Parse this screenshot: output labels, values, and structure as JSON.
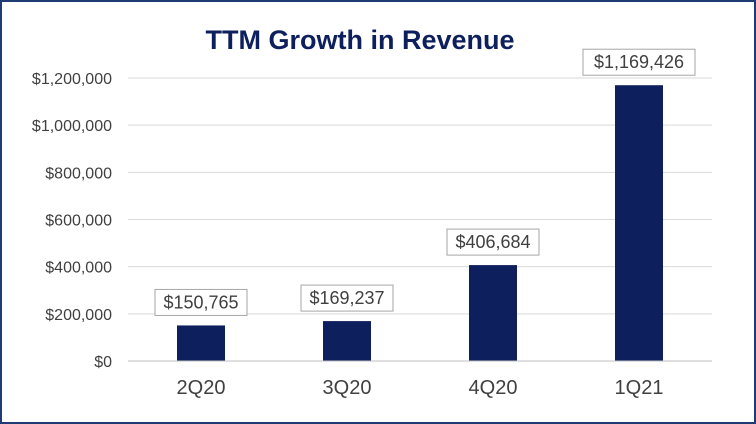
{
  "chart_data": {
    "type": "bar",
    "title": "TTM Growth in Revenue",
    "xlabel": "",
    "ylabel": "",
    "categories": [
      "2Q20",
      "3Q20",
      "4Q20",
      "1Q21"
    ],
    "values": [
      150765,
      169237,
      406684,
      1169426
    ],
    "value_labels": [
      "$150,765",
      "$169,237",
      "$406,684",
      "$1,169,426"
    ],
    "ylim": [
      0,
      1200000
    ],
    "yticks": [
      0,
      200000,
      400000,
      600000,
      800000,
      1000000,
      1200000
    ],
    "ytick_labels": [
      "$0",
      "$200,000",
      "$400,000",
      "$600,000",
      "$800,000",
      "$1,000,000",
      "$1,200,000"
    ],
    "grid": true,
    "legend": "none",
    "colors": {
      "bar": "#0d1f5c",
      "title": "#0d1f5c",
      "frame": "#1f3b73",
      "grid": "#d9d9d9"
    }
  }
}
